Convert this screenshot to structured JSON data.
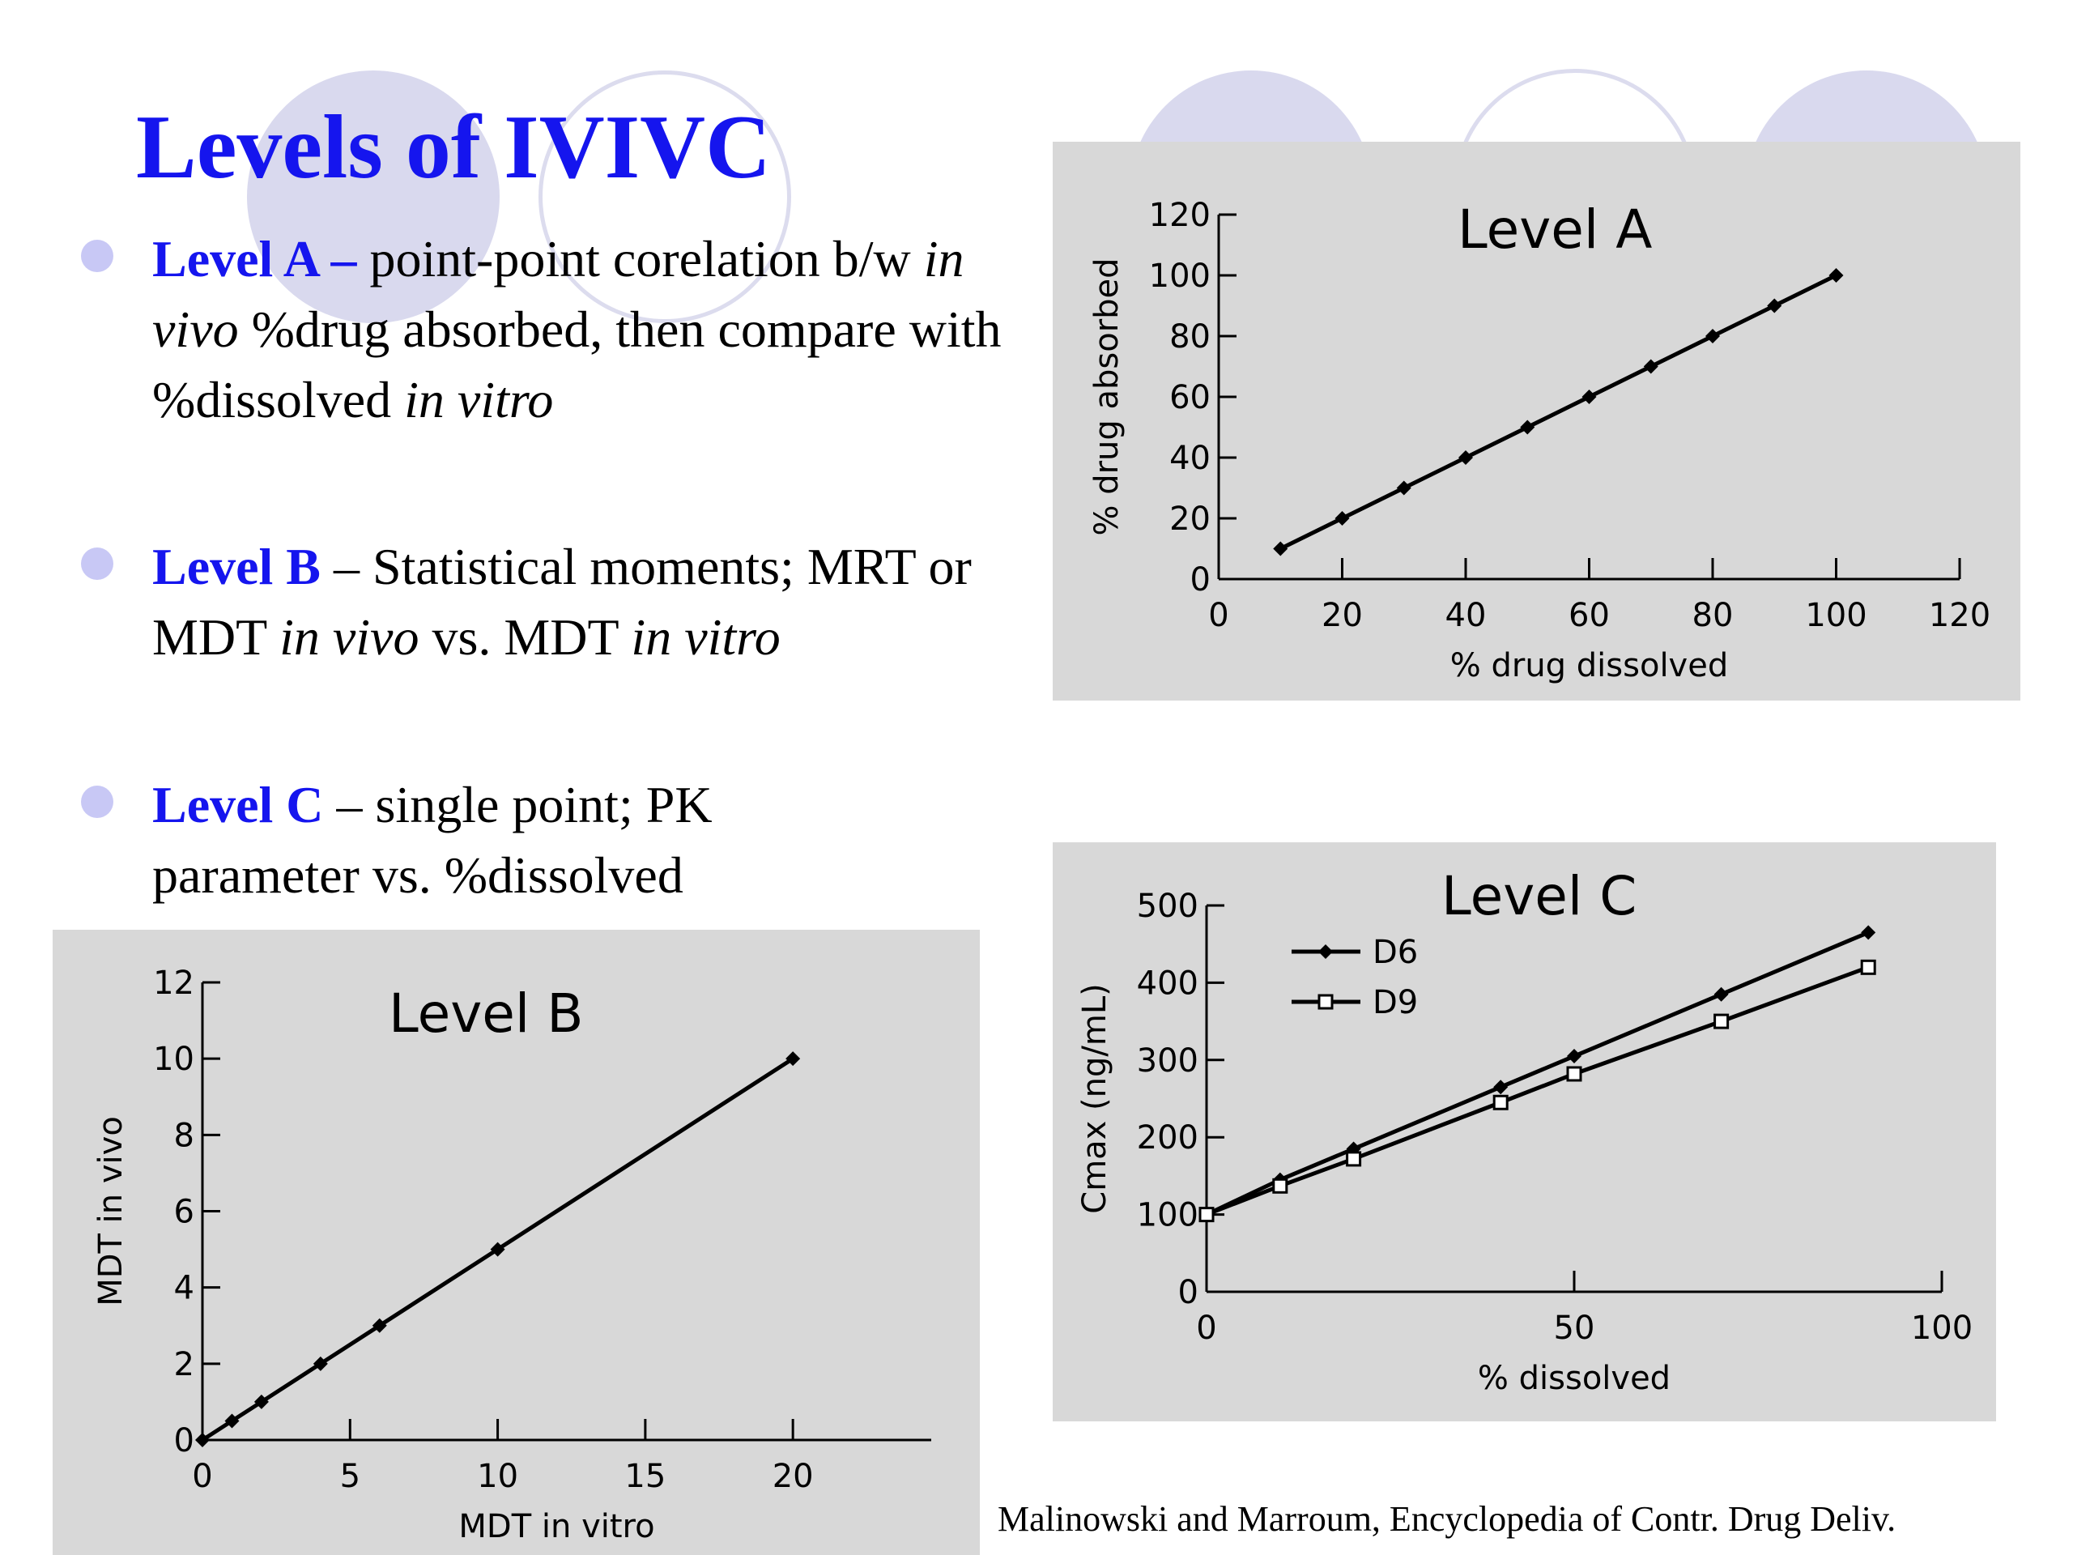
{
  "slide": {
    "title": "Levels of IVIVC",
    "bullets": [
      {
        "label": "Level A –",
        "text_html": " point-point corelation b/w <i>in vivo</i> %drug absorbed, then compare with %dissolved <i>in vitro</i>"
      },
      {
        "label": "Level B",
        "text_html": " – Statistical moments; MRT or MDT <i>in vivo</i> vs. MDT <i>in vitro</i>"
      },
      {
        "label": "Level C",
        "text_html": " – single point; PK parameter vs. %dissolved"
      }
    ],
    "citation": "Malinowski and Marroum, Encyclopedia of Contr. Drug Deliv.",
    "colors": {
      "title": "#1515ee",
      "bullet_dot": "#c8c8f5",
      "panel_bg": "#d8d8d8",
      "decor_circle": "#d9d9ee"
    }
  },
  "chart_data": [
    {
      "id": "level-a",
      "type": "line",
      "title": "Level  A",
      "xlabel": "% drug dissolved",
      "ylabel": "% drug absorbed",
      "xlim": [
        0,
        120
      ],
      "ylim": [
        0,
        120
      ],
      "xticks": [
        0,
        20,
        40,
        60,
        80,
        100,
        120
      ],
      "yticks": [
        0,
        20,
        40,
        60,
        80,
        100,
        120
      ],
      "series": [
        {
          "marker": "diamond-filled",
          "x": [
            10,
            20,
            30,
            40,
            50,
            60,
            70,
            80,
            90,
            100
          ],
          "y": [
            10,
            20,
            30,
            40,
            50,
            60,
            70,
            80,
            90,
            100
          ]
        }
      ]
    },
    {
      "id": "level-b",
      "type": "line",
      "title": "Level  B",
      "xlabel": "MDT in vitro",
      "ylabel": "MDT in vivo",
      "xlim": [
        0,
        24
      ],
      "ylim": [
        0,
        12
      ],
      "xticks": [
        0,
        5,
        10,
        15,
        20
      ],
      "yticks": [
        0,
        2,
        4,
        6,
        8,
        10,
        12
      ],
      "series": [
        {
          "marker": "diamond-filled",
          "x": [
            0,
            1,
            2,
            4,
            6,
            10,
            20
          ],
          "y": [
            0,
            0.5,
            1,
            2,
            3,
            5,
            10
          ]
        }
      ]
    },
    {
      "id": "level-c",
      "type": "line",
      "title": "Level  C",
      "xlabel": "% dissolved",
      "ylabel": "Cmax (ng/mL)",
      "xlim": [
        0,
        100
      ],
      "ylim": [
        0,
        500
      ],
      "xticks": [
        0,
        50,
        100
      ],
      "yticks": [
        0,
        100,
        200,
        300,
        400,
        500
      ],
      "legend_position": "top-left",
      "series": [
        {
          "name": "D6",
          "marker": "diamond-filled",
          "x": [
            0,
            10,
            20,
            40,
            50,
            70,
            90
          ],
          "y": [
            100,
            145,
            185,
            265,
            305,
            385,
            465
          ]
        },
        {
          "name": "D9",
          "marker": "square-open",
          "x": [
            0,
            10,
            20,
            40,
            50,
            70,
            90
          ],
          "y": [
            100,
            137,
            172,
            245,
            282,
            350,
            420
          ]
        }
      ]
    }
  ]
}
